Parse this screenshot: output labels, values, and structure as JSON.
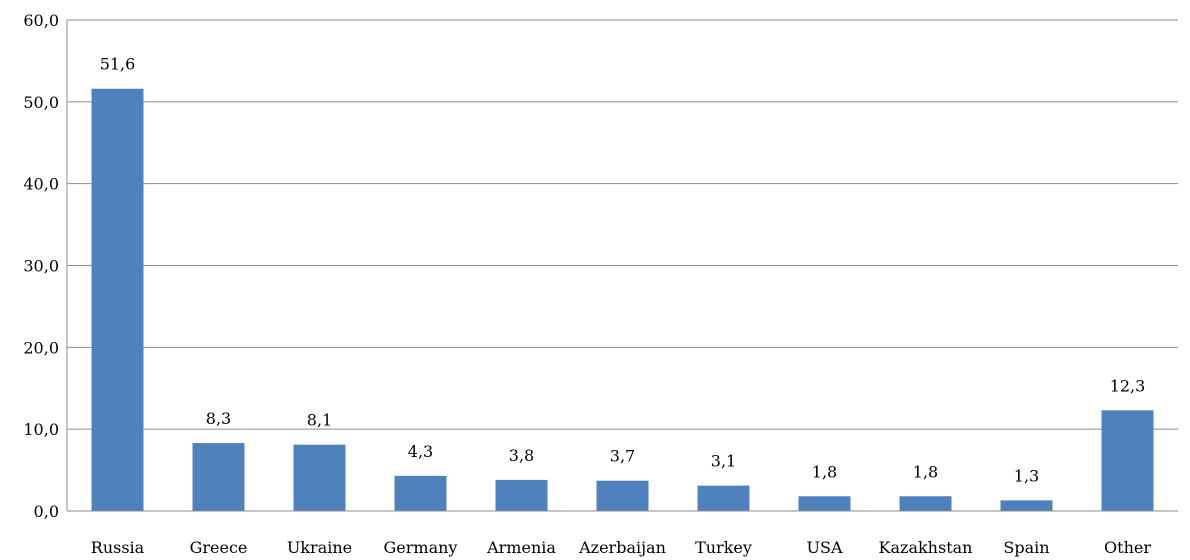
{
  "chart_data": {
    "type": "bar",
    "categories": [
      "Russia",
      "Greece",
      "Ukraine",
      "Germany",
      "Armenia",
      "Azerbaijan",
      "Turkey",
      "USA",
      "Kazakhstan",
      "Spain",
      "Other"
    ],
    "values": [
      51.6,
      8.3,
      8.1,
      4.3,
      3.8,
      3.7,
      3.1,
      1.8,
      1.8,
      1.3,
      12.3
    ],
    "value_labels": [
      "51,6",
      "8,3",
      "8,1",
      "4,3",
      "3,8",
      "3,7",
      "3,1",
      "1,8",
      "1,8",
      "1,3",
      "12,3"
    ],
    "yticks": [
      0,
      10,
      20,
      30,
      40,
      50,
      60
    ],
    "ytick_labels": [
      "0,0",
      "10,0",
      "20,0",
      "30,0",
      "40,0",
      "50,0",
      "60,0"
    ],
    "ylim": [
      0,
      60
    ],
    "grid": true,
    "legend": "none",
    "title": "",
    "xlabel": "",
    "ylabel": "",
    "colors": {
      "bar": "#4f81bd",
      "grid": "#8c8c8c",
      "axis": "#8c8c8c"
    }
  }
}
